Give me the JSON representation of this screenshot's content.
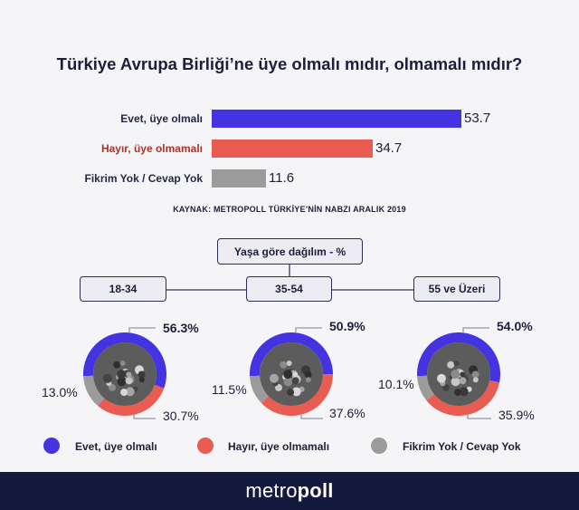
{
  "title": "Türkiye Avrupa Birliği’ne üye olmalı mıdır, olmamalı mıdır?",
  "source": "KAYNAK: METROPOLL TÜRKİYE’NİN NABZI ARALIK 2019",
  "colors": {
    "yes": "#4333e0",
    "no": "#e85c51",
    "none": "#9b9b9b"
  },
  "chart_data": [
    {
      "type": "bar",
      "title": "Türkiye Avrupa Birliği’ne üye olmalı mıdır, olmamalı mıdır?",
      "categories": [
        "Evet, üye olmalı",
        "Hayır, üye olmamalı",
        "Fikrim Yok / Cevap Yok"
      ],
      "values": [
        53.7,
        34.7,
        11.6
      ],
      "value_labels": [
        "53.7",
        "34.7",
        "11.6"
      ],
      "orientation": "horizontal"
    },
    {
      "type": "pie",
      "title": "Yaşa göre dağılım - %",
      "groups": [
        {
          "label": "18-34",
          "values": [
            56.3,
            30.7,
            13.0
          ],
          "value_labels": [
            "56.3%",
            "30.7%",
            "13.0%"
          ]
        },
        {
          "label": "35-54",
          "values": [
            50.9,
            37.6,
            11.5
          ],
          "value_labels": [
            "50.9%",
            "37.6%",
            "11.5%"
          ]
        },
        {
          "label": "55 ve Üzeri",
          "values": [
            54.0,
            35.9,
            10.1
          ],
          "value_labels": [
            "54.0%",
            "35.9%",
            "10.1%"
          ]
        }
      ],
      "series_names": [
        "Evet, üye olmalı",
        "Hayır, üye olmamalı",
        "Fikrim Yok / Cevap Yok"
      ]
    }
  ],
  "breakdown": {
    "header": "Yaşa göre dağılım - %"
  },
  "legend": [
    "Evet, üye olmalı",
    "Hayır, üye olmamalı",
    "Fikrim Yok / Cevap Yok"
  ],
  "footer": {
    "brand_a": "metro",
    "brand_b": "poll"
  }
}
